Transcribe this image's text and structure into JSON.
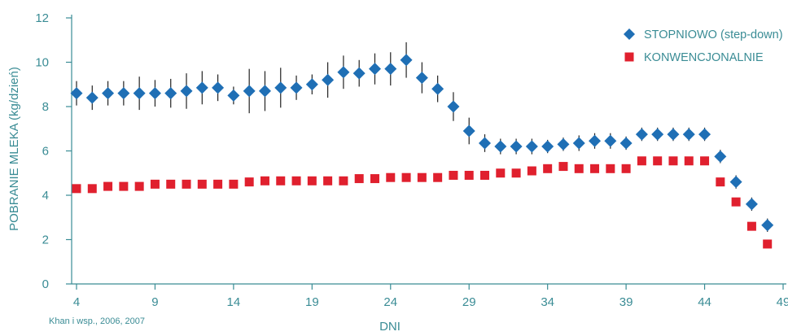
{
  "chart_data": {
    "type": "scatter",
    "xlabel": "DNI",
    "ylabel": "POBRANIE MLEKA (kg/dzień)",
    "xlim": [
      4,
      49
    ],
    "ylim": [
      0,
      12
    ],
    "x_ticks": [
      4,
      9,
      14,
      19,
      24,
      29,
      34,
      39,
      44,
      49
    ],
    "x_tick_labels": [
      "4",
      "9",
      "14",
      "19",
      "24",
      "29",
      "34",
      "39",
      "44",
      "49"
    ],
    "y_ticks": [
      0,
      2,
      4,
      6,
      8,
      10,
      12
    ],
    "y_tick_labels": [
      "0",
      "2",
      "4",
      "6",
      "8",
      "10",
      "12"
    ],
    "legend_position": "top-right",
    "source": "Khan i wsp., 2006, 2007",
    "colors": {
      "axis": "#3a8c95",
      "step_down": "#1f6fb5",
      "conventional": "#e0202e"
    },
    "series": [
      {
        "name": "STOPNIOWO (step-down)",
        "marker": "diamond",
        "x": [
          4,
          5,
          6,
          7,
          8,
          9,
          10,
          11,
          12,
          13,
          14,
          15,
          16,
          17,
          18,
          19,
          20,
          21,
          22,
          23,
          24,
          25,
          26,
          27,
          28,
          29,
          30,
          31,
          32,
          33,
          34,
          35,
          36,
          37,
          38,
          39,
          40,
          41,
          42,
          43,
          44,
          45,
          46,
          47,
          48
        ],
        "y": [
          8.6,
          8.4,
          8.6,
          8.6,
          8.6,
          8.6,
          8.6,
          8.7,
          8.85,
          8.85,
          8.5,
          8.7,
          8.7,
          8.85,
          8.85,
          9.0,
          9.2,
          9.55,
          9.5,
          9.7,
          9.7,
          10.1,
          9.3,
          8.8,
          8.0,
          6.9,
          6.35,
          6.2,
          6.2,
          6.2,
          6.2,
          6.3,
          6.35,
          6.45,
          6.45,
          6.35,
          6.75,
          6.75,
          6.75,
          6.75,
          6.75,
          5.75,
          4.6,
          3.6,
          2.65
        ],
        "err": [
          0.55,
          0.55,
          0.55,
          0.55,
          0.75,
          0.6,
          0.65,
          0.8,
          0.75,
          0.6,
          0.4,
          1.0,
          0.9,
          0.9,
          0.55,
          0.45,
          0.8,
          0.75,
          0.6,
          0.7,
          0.75,
          0.8,
          0.7,
          0.6,
          0.65,
          0.6,
          0.4,
          0.35,
          0.35,
          0.35,
          0.3,
          0.3,
          0.35,
          0.35,
          0.35,
          0.3,
          0.3,
          0.3,
          0.3,
          0.3,
          0.3,
          0.3,
          0.3,
          0.3,
          0.3
        ]
      },
      {
        "name": "KONWENCJONALNIE",
        "marker": "square",
        "x": [
          4,
          5,
          6,
          7,
          8,
          9,
          10,
          11,
          12,
          13,
          14,
          15,
          16,
          17,
          18,
          19,
          20,
          21,
          22,
          23,
          24,
          25,
          26,
          27,
          28,
          29,
          30,
          31,
          32,
          33,
          34,
          35,
          36,
          37,
          38,
          39,
          40,
          41,
          42,
          43,
          44,
          45,
          46,
          47,
          48
        ],
        "y": [
          4.3,
          4.3,
          4.4,
          4.4,
          4.4,
          4.5,
          4.5,
          4.5,
          4.5,
          4.5,
          4.5,
          4.6,
          4.65,
          4.65,
          4.65,
          4.65,
          4.65,
          4.65,
          4.75,
          4.75,
          4.8,
          4.8,
          4.8,
          4.8,
          4.9,
          4.9,
          4.9,
          5.0,
          5.0,
          5.1,
          5.2,
          5.3,
          5.2,
          5.2,
          5.2,
          5.2,
          5.55,
          5.55,
          5.55,
          5.55,
          5.55,
          4.6,
          3.7,
          2.6,
          1.8
        ]
      }
    ]
  }
}
